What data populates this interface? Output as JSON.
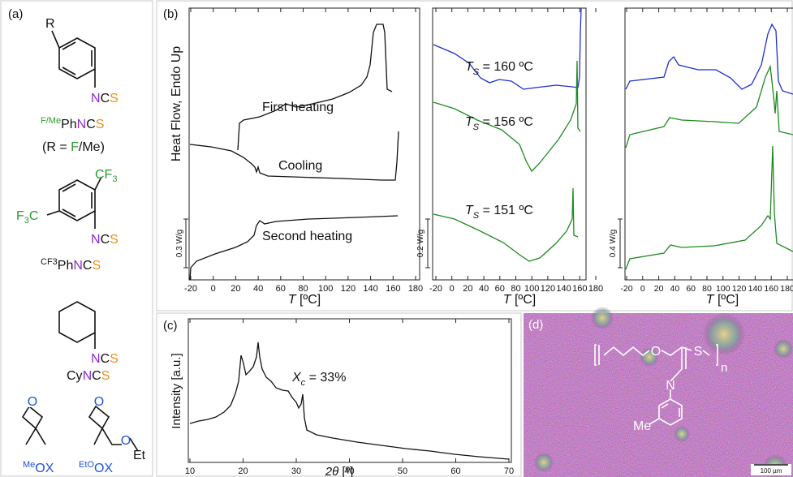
{
  "panel_a": {
    "label": "(a)",
    "s1": {
      "substituent": "R",
      "group": [
        "N",
        "C",
        "S"
      ],
      "name": {
        "prefix": "F/Me",
        "parts": [
          "Ph",
          "N",
          "C",
          "S"
        ]
      },
      "note": [
        "(R = ",
        "F",
        "/Me)"
      ]
    },
    "s2": {
      "top": [
        "CF",
        "3"
      ],
      "left": [
        "F",
        "3",
        "C"
      ],
      "group": [
        "N",
        "C",
        "S"
      ],
      "name": {
        "prefix": "CF3",
        "parts": [
          "Ph",
          "N",
          "C",
          "S"
        ]
      }
    },
    "s3": {
      "group": [
        "N",
        "C",
        "S"
      ],
      "name": [
        "Cy",
        "N",
        "C",
        "S"
      ]
    },
    "s4": {
      "atom": "O",
      "name": {
        "prefix": "Me",
        "parts": "OX"
      }
    },
    "s5": {
      "atoms": [
        "O",
        "O",
        "Et"
      ],
      "name": {
        "prefix": "EtO",
        "parts": "OX"
      }
    }
  },
  "panel_b": {
    "label": "(b)",
    "y_label": "Heat Flow, Endo Up",
    "x_label": [
      "T",
      " [ºC]"
    ],
    "xticks": [
      -20,
      0,
      20,
      40,
      60,
      80,
      100,
      120,
      140,
      160,
      180
    ],
    "curve_labels": [
      "First heating",
      "Cooling",
      "Second heating"
    ],
    "scale_bars": [
      "0.3 W/g",
      "0.2 W/g",
      "0.4 W/g"
    ],
    "ts": {
      "symbol": "T",
      "sub": "S",
      "values": [
        " = 160 ºC",
        " = 156 ºC",
        " = 151 ºC"
      ]
    }
  },
  "panel_c": {
    "label": "(c)",
    "y_label": "Intensity [a.u.]",
    "x_label": [
      "2θ",
      " [º]"
    ],
    "xticks": [
      10,
      20,
      30,
      40,
      50,
      60,
      70
    ],
    "annotation": {
      "symbol": "X",
      "sub": "c",
      "value": " = 33%"
    }
  },
  "panel_d": {
    "label": "(d)",
    "scale_bar": "100 µm",
    "atoms": [
      "O",
      "S",
      "N",
      "Me"
    ],
    "repeat": "n"
  }
}
